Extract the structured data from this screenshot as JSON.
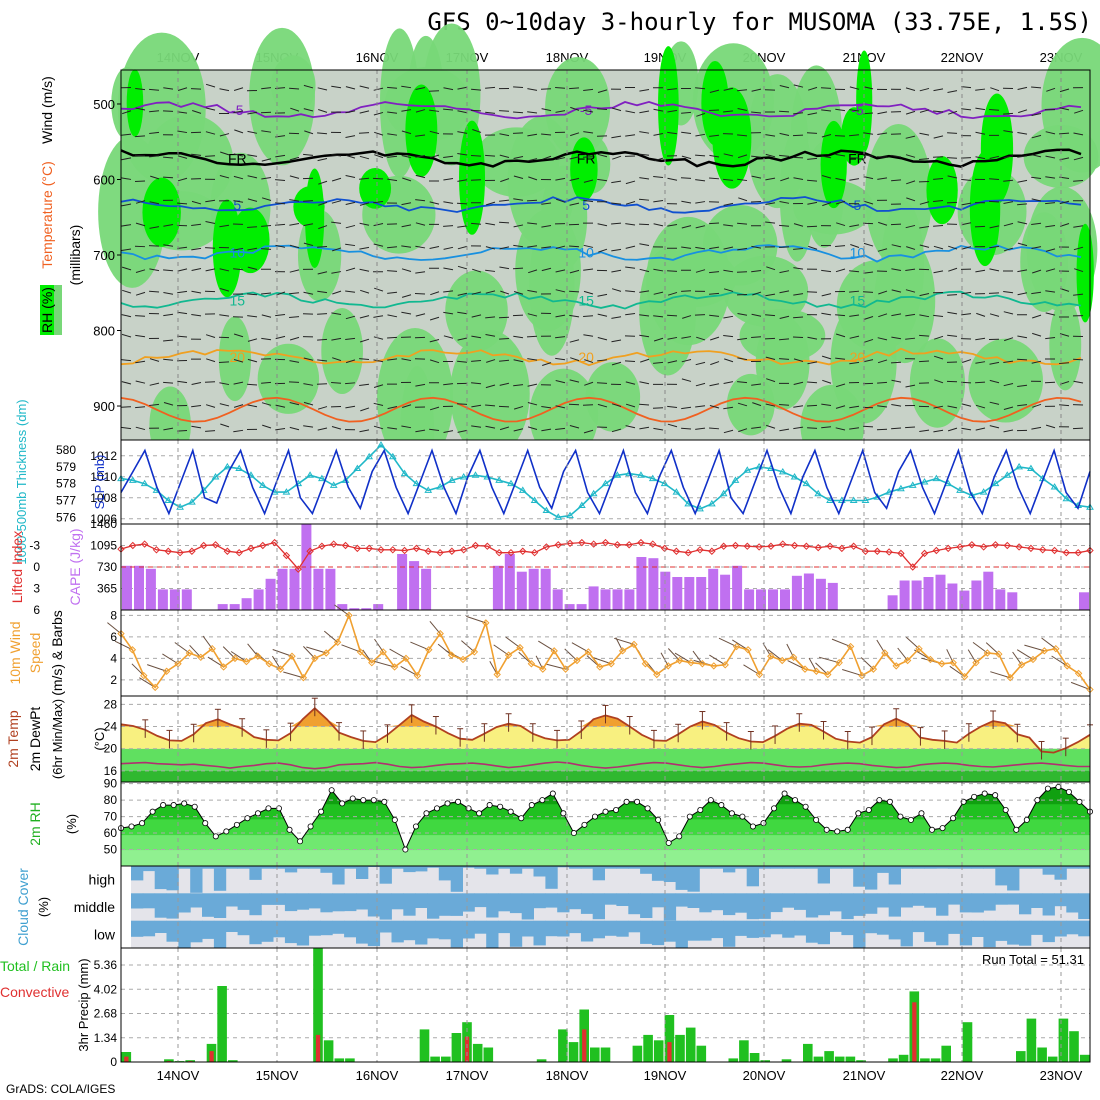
{
  "title": "GFS 0~10day 3-hourly for MUSOMA (33.75E, 1.5S)",
  "footer": "GrADS: COLA/IGES",
  "run_total_label": "Run Total = 51.31",
  "dates": [
    "14NOV",
    "15NOV",
    "16NOV",
    "17NOV",
    "18NOV",
    "19NOV",
    "20NOV",
    "21NOV",
    "22NOV",
    "23NOV"
  ],
  "colors": {
    "rh_light": "#c8d2c8",
    "rh_mid": "#78d878",
    "rh_high": "#00ee00",
    "slp": "#1030c8",
    "thickness": "#20b8c8",
    "cape": "#c070f0",
    "lifted": "#e03030",
    "wind10": "#f0a030",
    "temp": "#b04020",
    "dew": "#b03070",
    "rain_total": "#20c020",
    "rain_conv": "#e03030",
    "cloud": "#6aaad8",
    "cloud_bg": "#f0f0f4"
  },
  "chart_data": [
    {
      "type": "heatmap",
      "id": "upper_air",
      "ylabel_parts": [
        "Wind (m/s)",
        "Temperature (°C)",
        "RH (%)",
        "(millibars)"
      ],
      "ylabel": "(millibars)",
      "yticks": [
        500,
        600,
        700,
        800,
        900
      ],
      "ylim": [
        455,
        945
      ],
      "isotherms": [
        {
          "label": "-5",
          "p": 508,
          "color": "#8020c0"
        },
        {
          "label": "FR",
          "p": 572,
          "color": "#000000"
        },
        {
          "label": "5",
          "p": 634,
          "color": "#1050d0"
        },
        {
          "label": "10",
          "p": 697,
          "color": "#1890e0"
        },
        {
          "label": "15",
          "p": 760,
          "color": "#10b890"
        },
        {
          "label": "20",
          "p": 835,
          "color": "#f0a020"
        }
      ]
    },
    {
      "type": "line",
      "id": "slp_thickness",
      "ylabel_left": "1000-500mb Thickness (dm)",
      "ylabel_right": "SLP (mb)",
      "yticks_left": [
        576,
        577,
        578,
        579,
        580
      ],
      "yticks_right": [
        1006,
        1008,
        1010,
        1012
      ],
      "series": [
        {
          "name": "SLP (mb)",
          "values": [
            1008.5,
            1010.5,
            1012.5,
            1009,
            1006.5,
            1009.5,
            1012.5,
            1008,
            1007.5,
            1010.5,
            1012.5,
            1009,
            1006.5,
            1009.5,
            1012.5,
            1008,
            1006.5,
            1009.5,
            1012.5,
            1009,
            1007,
            1010.5,
            1012.5,
            1009,
            1006.5,
            1009.5,
            1012.5,
            1009,
            1006.5,
            1010,
            1012.5,
            1009,
            1006.5,
            1009.5,
            1012.5,
            1009,
            1007,
            1010.5,
            1012.5,
            1008.5,
            1006.5,
            1009.5,
            1012.5,
            1008.5,
            1006.5,
            1010,
            1012.5,
            1009,
            1006.5,
            1009.5,
            1012.5,
            1008,
            1006.5,
            1009.5,
            1012.5,
            1009,
            1006.5,
            1010,
            1012.5,
            1009,
            1006.5,
            1009.5,
            1012.5,
            1008.5,
            1007,
            1010.5,
            1012.5,
            1009,
            1006.5,
            1009.5,
            1012.5,
            1008.5,
            1006.5,
            1010,
            1012.5,
            1009,
            1006.5,
            1009.5,
            1012.5,
            1008.5,
            1007,
            1010.5
          ]
        },
        {
          "name": "1000-500mb Thickness (dm)",
          "values": [
            578.3,
            578.2,
            578.0,
            577.6,
            577.0,
            576.6,
            576.9,
            577.6,
            578.4,
            579.0,
            578.9,
            578.5,
            577.9,
            577.5,
            577.5,
            578.0,
            578.5,
            578.3,
            577.9,
            578.2,
            578.9,
            579.6,
            580.3,
            579.6,
            578.6,
            578.0,
            577.6,
            577.8,
            578.2,
            578.4,
            578.5,
            578.4,
            578.2,
            578.0,
            577.6,
            577.0,
            576.4,
            576.0,
            576.1,
            576.7,
            577.4,
            578.0,
            578.5,
            578.6,
            578.5,
            578.3,
            578.0,
            577.5,
            576.8,
            576.5,
            576.8,
            577.4,
            578.2,
            578.8,
            579.0,
            578.9,
            578.7,
            578.4,
            578.0,
            577.4,
            577.0,
            577.0,
            577.0,
            577.0,
            577.2,
            577.5,
            577.7,
            577.9,
            578.1,
            578.3,
            578.0,
            577.6,
            577.3,
            577.5,
            578.0,
            578.5,
            579.0,
            578.9,
            578.3,
            577.8,
            577.1,
            576.7,
            576.6
          ]
        }
      ]
    },
    {
      "type": "bar",
      "id": "cape_li",
      "ylabel_left": "Lifted Index",
      "ylabel_right": "CAPE (J/kg)",
      "yticks_left": [
        -3,
        0,
        3,
        6
      ],
      "yticks_right": [
        365,
        730,
        1095,
        1460
      ],
      "series": [
        {
          "name": "CAPE (J/kg)",
          "values": [
            750,
            750,
            700,
            350,
            350,
            350,
            0,
            0,
            100,
            100,
            200,
            350,
            530,
            700,
            700,
            1460,
            700,
            700,
            100,
            30,
            30,
            100,
            0,
            950,
            830,
            700,
            0,
            0,
            0,
            0,
            0,
            750,
            950,
            650,
            700,
            700,
            350,
            100,
            100,
            400,
            350,
            350,
            350,
            900,
            880,
            650,
            560,
            560,
            560,
            700,
            600,
            750,
            350,
            350,
            350,
            350,
            580,
            620,
            530,
            460,
            0,
            0,
            0,
            0,
            250,
            500,
            500,
            560,
            600,
            450,
            330,
            500,
            650,
            350,
            300,
            0,
            0,
            0,
            0,
            0,
            300
          ]
        },
        {
          "name": "Lifted Index",
          "values": [
            -2.5,
            -3.0,
            -3.2,
            -2.4,
            -2.2,
            -2.0,
            -2.2,
            -3.0,
            -3.1,
            -2.2,
            -2.0,
            -2.6,
            -3.0,
            -3.4,
            -1.6,
            0.3,
            -2.2,
            -2.9,
            -3.2,
            -3.0,
            -2.6,
            -2.6,
            -2.4,
            -2.4,
            -2.3,
            -2.6,
            -2.2,
            -2.0,
            -2.2,
            -2.4,
            -3.0,
            -2.9,
            -2.0,
            -2.0,
            -2.2,
            -2.0,
            -2.8,
            -3.1,
            -3.3,
            -3.4,
            -3.2,
            -3.4,
            -3.1,
            -3.1,
            -3.4,
            -3.2,
            -2.6,
            -2.2,
            -2.0,
            -2.4,
            -2.2,
            -2.9,
            -3.0,
            -2.9,
            -2.8,
            -2.9,
            -3.2,
            -3.0,
            -2.9,
            -2.7,
            -2.9,
            -2.6,
            -2.9,
            -2.2,
            -2.2,
            -2.1,
            -1.9,
            0.0,
            -1.9,
            -2.3,
            -2.6,
            -2.8,
            -3.1,
            -2.8,
            -3.1,
            -3.0,
            -2.8,
            -2.6,
            -2.4,
            -2.3,
            -2.0,
            -2.0,
            -2.3
          ]
        }
      ]
    },
    {
      "type": "line",
      "id": "wind10",
      "ylabel": "10m Wind Speed & Barbs (m/s)",
      "ylabel_parts": [
        "10m Wind",
        "Speed",
        "(m/s) & Barbs"
      ],
      "yticks": [
        2,
        4,
        6,
        8
      ],
      "series": [
        {
          "name": "10m Wind Speed",
          "values": [
            6.3,
            4.8,
            2.4,
            1.3,
            2.8,
            3.5,
            4.5,
            4.1,
            4.9,
            3.2,
            4.0,
            3.7,
            4.2,
            3.5,
            3.0,
            4.2,
            2.2,
            4.0,
            4.5,
            5.5,
            8.0,
            4.6,
            3.6,
            4.6,
            3.2,
            4.0,
            2.4,
            4.8,
            6.3,
            4.3,
            3.9,
            4.6,
            7.3,
            2.5,
            4.3,
            5.0,
            3.5,
            3.0,
            4.7,
            3.0,
            3.8,
            4.6,
            3.2,
            3.5,
            4.7,
            5.3,
            3.5,
            2.5,
            3.3,
            3.8,
            3.6,
            3.5,
            3.3,
            3.4,
            5.1,
            4.8,
            2.5,
            4.2,
            3.8,
            4.1,
            3.0,
            2.8,
            2.5,
            3.6,
            5.1,
            2.4,
            3.0,
            4.5,
            3.3,
            3.8,
            4.9,
            3.9,
            3.5,
            3.6,
            2.3,
            3.6,
            4.5,
            4.4,
            2.2,
            3.4,
            3.9,
            4.7,
            4.9,
            3.3,
            2.6,
            1.1
          ]
        }
      ]
    },
    {
      "type": "area",
      "id": "temp2m",
      "ylabel": "2m Temp / 2m DewPt / (6hr Min/Max) (°C)",
      "ylabel_parts": [
        "2m Temp",
        "2m DewPt",
        "(6hr Min/Max)"
      ],
      "yticks": [
        16,
        20,
        24,
        28
      ],
      "ylim": [
        14,
        29.5
      ],
      "series": [
        {
          "name": "2m Temp",
          "values": [
            24.4,
            24.1,
            23.4,
            22.3,
            21.5,
            21.4,
            22.6,
            24.6,
            25.3,
            24.4,
            23.6,
            22.1,
            21.6,
            21.5,
            22.8,
            25.3,
            27.3,
            25.3,
            22.9,
            22.1,
            21.4,
            21.2,
            22.5,
            24.3,
            26.1,
            24.9,
            24.0,
            22.8,
            21.8,
            21.6,
            22.7,
            23.9,
            24.5,
            24.1,
            22.7,
            21.9,
            21.5,
            21.6,
            23.2,
            25.3,
            26.0,
            25.4,
            24.0,
            22.5,
            21.5,
            21.4,
            22.6,
            24.0,
            24.9,
            24.3,
            22.9,
            21.9,
            21.3,
            21.2,
            22.3,
            23.6,
            24.5,
            24.3,
            23.1,
            21.8,
            21.3,
            21.1,
            22.1,
            24.4,
            25.4,
            24.4,
            22.0,
            21.6,
            21.4,
            21.1,
            22.7,
            24.0,
            25.0,
            24.6,
            22.6,
            22.0,
            19.5,
            19.3,
            20.1,
            21.2,
            22.5
          ]
        },
        {
          "name": "2m DewPt",
          "values": [
            17.3,
            17.4,
            17.5,
            17.3,
            17.2,
            17.1,
            17.2,
            17.0,
            16.8,
            16.5,
            16.8,
            17.0,
            17.3,
            17.4,
            17.1,
            16.6,
            16.4,
            16.6,
            17.1,
            17.2,
            17.3,
            17.5,
            17.2,
            16.8,
            16.6,
            16.7,
            17.0,
            17.2,
            17.3,
            17.4,
            17.2,
            16.9,
            16.6,
            16.8,
            17.1,
            17.4,
            17.6,
            17.4,
            17.0,
            16.7,
            16.5,
            16.7,
            17.0,
            17.3,
            17.5,
            17.4,
            17.1,
            16.8,
            16.6,
            16.8,
            17.1,
            17.3,
            17.5,
            17.4,
            17.1,
            16.8,
            16.7,
            16.8,
            17.1,
            17.3,
            17.4,
            17.3,
            17.0,
            16.8,
            16.6,
            16.7,
            17.1,
            17.3,
            17.4,
            17.3,
            17.0,
            16.8,
            16.7,
            16.9,
            17.1,
            17.3,
            17.4,
            17.2,
            17.0,
            16.8,
            16.8
          ]
        }
      ]
    },
    {
      "type": "area",
      "id": "rh2m",
      "ylabel": "2m RH (%)",
      "yticks": [
        50,
        60,
        70,
        80,
        90
      ],
      "ylim": [
        40,
        91
      ],
      "series": [
        {
          "name": "2m RH",
          "values": [
            63,
            64,
            66,
            73,
            77,
            77,
            78,
            76,
            66,
            58,
            61,
            65,
            69,
            72,
            75,
            75,
            62,
            55,
            64,
            73,
            86,
            78,
            81,
            80,
            80,
            79,
            68,
            50,
            64,
            72,
            75,
            78,
            79,
            75,
            72,
            77,
            76,
            73,
            69,
            77,
            80,
            84,
            72,
            60,
            65,
            70,
            73,
            74,
            79,
            79,
            75,
            68,
            54,
            58,
            70,
            74,
            80,
            77,
            72,
            70,
            64,
            66,
            75,
            84,
            80,
            76,
            68,
            62,
            61,
            62,
            72,
            74,
            80,
            79,
            70,
            68,
            72,
            62,
            63,
            69,
            79,
            82,
            84,
            83,
            74,
            62,
            68,
            80,
            87,
            88,
            85,
            79,
            73
          ]
        }
      ]
    },
    {
      "type": "heatmap",
      "id": "cloud",
      "ylabel": "Cloud Cover (%)",
      "rows": [
        "high",
        "middle",
        "low"
      ]
    },
    {
      "type": "bar",
      "id": "precip",
      "ylabel": "Total / Rain Convective 3hr Precip (mm)",
      "ylabel_parts": [
        "Total / Rain",
        "Convective",
        "3hr Precip (mm)"
      ],
      "yticks": [
        0,
        1.34,
        2.68,
        4.02,
        5.36
      ],
      "ylim": [
        0,
        6.3
      ],
      "series": [
        {
          "name": "Total / Rain",
          "values": [
            0.55,
            0,
            0,
            0,
            0.15,
            0.05,
            0.1,
            0,
            1.0,
            4.2,
            0.1,
            0,
            0,
            0,
            0,
            0,
            0,
            0,
            6.3,
            1.2,
            0.2,
            0.2,
            0,
            0,
            0,
            0,
            0,
            0,
            1.8,
            0.3,
            0.3,
            1.6,
            2.2,
            1.0,
            0.8,
            0,
            0,
            0,
            0,
            0.15,
            0,
            1.8,
            1.1,
            2.9,
            0.8,
            0.8,
            0,
            0,
            0.9,
            1.5,
            1.2,
            2.6,
            1.5,
            1.9,
            0.9,
            0,
            0,
            0.2,
            1.2,
            0.5,
            0.1,
            0,
            0.15,
            0,
            1.0,
            0.3,
            0.6,
            0.3,
            0.3,
            0.1,
            0,
            0,
            0.2,
            0.4,
            3.9,
            0.2,
            0.2,
            0.9,
            0,
            2.2,
            0,
            0,
            0,
            0,
            0.6,
            2.4,
            0.8,
            0.3,
            2.4,
            1.7,
            0.4
          ]
        },
        {
          "name": "Convective",
          "values": [
            0.3,
            0,
            0,
            0,
            0.05,
            0,
            0.05,
            0,
            0.6,
            0,
            0,
            0,
            0,
            0,
            0,
            0,
            0,
            0,
            1.5,
            0,
            0,
            0,
            0,
            0,
            0,
            0,
            0,
            0,
            0,
            0,
            0,
            0,
            1.4,
            0,
            0,
            0,
            0,
            0,
            0,
            0,
            0,
            0,
            0,
            1.8,
            0,
            0,
            0,
            0,
            0,
            0,
            0,
            1.1,
            0,
            0,
            0,
            0,
            0,
            0,
            0,
            0,
            0,
            0,
            0,
            0,
            0,
            0,
            0,
            0,
            0,
            0,
            0,
            0,
            0,
            0,
            3.3,
            0,
            0,
            0,
            0,
            0,
            0,
            0,
            0,
            0,
            0,
            0,
            0,
            0,
            0,
            0,
            0
          ]
        }
      ]
    }
  ]
}
